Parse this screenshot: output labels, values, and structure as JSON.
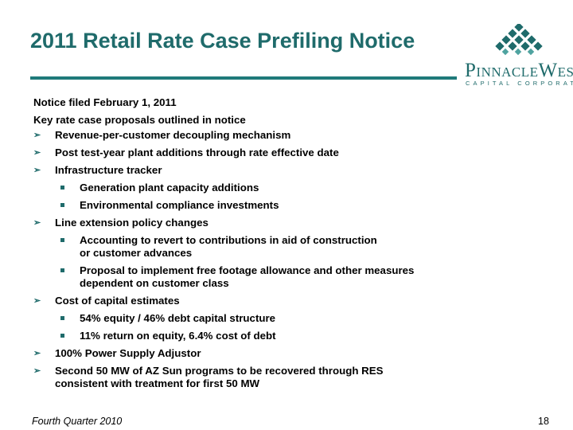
{
  "title": "2011 Retail Rate Case Prefiling Notice",
  "logo": {
    "word_p": "P",
    "word_innacle": "INNACLE",
    "word_w": "W",
    "word_est": "EST",
    "subtitle": "CAPITAL CORPORATION"
  },
  "content": {
    "line1": "Notice filed February 1, 2011",
    "line2": "Key rate case proposals outlined in notice",
    "b1": "Revenue-per-customer decoupling mechanism",
    "b2": "Post test-year plant additions through rate effective date",
    "b3": "Infrastructure tracker",
    "b3_s1": "Generation plant capacity additions",
    "b3_s2": "Environmental compliance investments",
    "b4": "Line extension policy changes",
    "b4_s1_l1": "Accounting to revert to contributions in aid of construction",
    "b4_s1_l2": "or customer advances",
    "b4_s2_l1": "Proposal to implement free footage allowance and other measures",
    "b4_s2_l2": "dependent on customer class",
    "b5": "Cost of capital estimates",
    "b5_s1": "54% equity / 46% debt capital structure",
    "b5_s2": "11% return on equity, 6.4% cost of debt",
    "b6": "100% Power Supply Adjustor",
    "b7_l1": "Second 50 MW of AZ Sun programs to be recovered through RES",
    "b7_l2": "consistent with treatment for first 50 MW"
  },
  "footer": {
    "left": "Fourth Quarter 2010",
    "page": "18"
  },
  "colors": {
    "accent": "#1f6b6b",
    "rule": "#1f7a7a",
    "diamond": "#4fa3a0"
  },
  "icons": {
    "bullet": "arrow-bullet-icon",
    "sub_bullet": "square-bullet-icon",
    "logo": "pinnacle-west-logo-icon"
  }
}
